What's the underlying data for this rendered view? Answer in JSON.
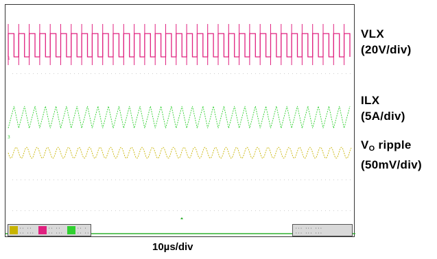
{
  "labels": {
    "vlx_name": "VLX",
    "vlx_scale": "(20V/div)",
    "ilx_name": "ILX",
    "ilx_scale": "(5A/div)",
    "vo_name_main": "V",
    "vo_name_sub": "O",
    "vo_name_rest": " ripple",
    "vo_scale": "(50mV/div)"
  },
  "timebase": "10µs/div",
  "channels": [
    {
      "id": "C1",
      "color": "#e0207f"
    },
    {
      "id": "C3",
      "color": "#2fd02f"
    },
    {
      "id": "C4",
      "color": "#c8b400"
    }
  ],
  "trace_colors": {
    "vlx": "#e0207f",
    "ilx": "#2fd02f",
    "vo": "#c8b400",
    "bottom_line": "#2fb02f"
  }
}
